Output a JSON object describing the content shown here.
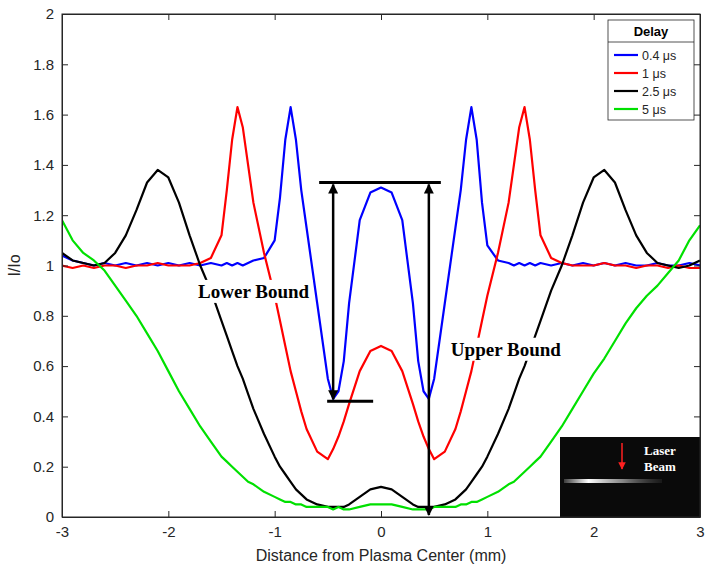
{
  "chart_data": {
    "type": "line",
    "x_label": "Distance from Plasma Center (mm)",
    "y_label": "I/Io",
    "legend_title": "Delay",
    "legend": "upper right",
    "xlim": [
      -3,
      3
    ],
    "ylim": [
      0,
      2
    ],
    "xticks": [
      -3,
      -2,
      -1,
      0,
      1,
      2,
      3
    ],
    "yticks": [
      0,
      0.2,
      0.4,
      0.6,
      0.8,
      1,
      1.2,
      1.4,
      1.6,
      1.8,
      2
    ],
    "grid": false,
    "x": [
      -3,
      -2.9,
      -2.8,
      -2.7,
      -2.6,
      -2.5,
      -2.4,
      -2.3,
      -2.2,
      -2.1,
      -2,
      -1.9,
      -1.8,
      -1.7,
      -1.6,
      -1.5,
      -1.45,
      -1.4,
      -1.35,
      -1.3,
      -1.25,
      -1.2,
      -1.1,
      -1,
      -0.95,
      -0.9,
      -0.85,
      -0.8,
      -0.75,
      -0.7,
      -0.6,
      -0.5,
      -0.45,
      -0.4,
      -0.35,
      -0.3,
      -0.2,
      -0.1,
      0,
      0.1,
      0.2,
      0.3,
      0.35,
      0.4,
      0.45,
      0.5,
      0.6,
      0.7,
      0.75,
      0.8,
      0.85,
      0.9,
      0.95,
      1,
      1.1,
      1.2,
      1.25,
      1.3,
      1.35,
      1.4,
      1.45,
      1.5,
      1.6,
      1.7,
      1.8,
      1.9,
      2,
      2.1,
      2.2,
      2.3,
      2.4,
      2.5,
      2.6,
      2.7,
      2.8,
      2.9,
      3
    ],
    "series": [
      {
        "name": "0.4 μs",
        "color": "#0000ff",
        "values": [
          1.04,
          1.02,
          1.01,
          1.0,
          1.01,
          1.0,
          1.01,
          1.0,
          1.01,
          1.0,
          1.01,
          1.0,
          1.01,
          1.0,
          1.01,
          1.0,
          1.01,
          1.0,
          1.01,
          1.0,
          1.01,
          1.02,
          1.03,
          1.1,
          1.27,
          1.5,
          1.63,
          1.5,
          1.3,
          1.15,
          0.85,
          0.55,
          0.47,
          0.5,
          0.62,
          0.85,
          1.18,
          1.29,
          1.31,
          1.29,
          1.18,
          0.85,
          0.62,
          0.5,
          0.47,
          0.55,
          0.85,
          1.15,
          1.3,
          1.5,
          1.63,
          1.5,
          1.25,
          1.08,
          1.02,
          1.01,
          1.0,
          1.01,
          1.0,
          1.01,
          1.0,
          1.01,
          1.0,
          1.01,
          1.0,
          1.01,
          1.0,
          1.01,
          1.0,
          1.01,
          1.0,
          1.0,
          1.01,
          1.0,
          1.0,
          1.01,
          1.0
        ]
      },
      {
        "name": "1 μs",
        "color": "#ff0000",
        "values": [
          1.0,
          0.99,
          1.0,
          0.99,
          1.0,
          1.0,
          0.99,
          1.0,
          1.0,
          1.01,
          1.0,
          1.0,
          1.0,
          1.01,
          1.03,
          1.12,
          1.3,
          1.5,
          1.63,
          1.55,
          1.4,
          1.25,
          1.05,
          0.88,
          0.78,
          0.68,
          0.58,
          0.5,
          0.42,
          0.35,
          0.26,
          0.23,
          0.27,
          0.32,
          0.38,
          0.45,
          0.58,
          0.66,
          0.68,
          0.66,
          0.58,
          0.45,
          0.38,
          0.32,
          0.27,
          0.23,
          0.26,
          0.35,
          0.42,
          0.5,
          0.58,
          0.68,
          0.78,
          0.88,
          1.05,
          1.25,
          1.4,
          1.55,
          1.63,
          1.5,
          1.3,
          1.12,
          1.03,
          1.01,
          1.0,
          1.0,
          1.0,
          1.01,
          1.0,
          1.0,
          0.99,
          1.0,
          1.0,
          0.99,
          1.0,
          0.99,
          0.99
        ]
      },
      {
        "name": "2.5 μs",
        "color": "#000000",
        "values": [
          1.05,
          1.02,
          1.01,
          1.0,
          1.01,
          1.05,
          1.12,
          1.22,
          1.33,
          1.38,
          1.35,
          1.25,
          1.12,
          1.0,
          0.9,
          0.78,
          0.72,
          0.66,
          0.6,
          0.55,
          0.49,
          0.43,
          0.33,
          0.24,
          0.2,
          0.17,
          0.14,
          0.11,
          0.09,
          0.07,
          0.05,
          0.04,
          0.04,
          0.04,
          0.04,
          0.05,
          0.08,
          0.11,
          0.12,
          0.11,
          0.08,
          0.05,
          0.04,
          0.04,
          0.04,
          0.04,
          0.05,
          0.07,
          0.09,
          0.11,
          0.14,
          0.17,
          0.2,
          0.24,
          0.33,
          0.43,
          0.49,
          0.55,
          0.6,
          0.66,
          0.72,
          0.78,
          0.9,
          1.0,
          1.12,
          1.25,
          1.35,
          1.38,
          1.33,
          1.22,
          1.12,
          1.05,
          1.01,
          1.0,
          0.99,
          1.0,
          1.02
        ]
      },
      {
        "name": "5 μs",
        "color": "#00e000",
        "values": [
          1.18,
          1.1,
          1.05,
          1.02,
          0.98,
          0.92,
          0.86,
          0.8,
          0.73,
          0.66,
          0.58,
          0.5,
          0.43,
          0.36,
          0.3,
          0.24,
          0.22,
          0.2,
          0.18,
          0.16,
          0.14,
          0.13,
          0.1,
          0.08,
          0.07,
          0.06,
          0.06,
          0.05,
          0.05,
          0.04,
          0.04,
          0.04,
          0.03,
          0.04,
          0.03,
          0.03,
          0.04,
          0.05,
          0.05,
          0.05,
          0.04,
          0.03,
          0.03,
          0.03,
          0.03,
          0.04,
          0.04,
          0.04,
          0.05,
          0.05,
          0.06,
          0.06,
          0.07,
          0.08,
          0.1,
          0.13,
          0.14,
          0.16,
          0.18,
          0.2,
          0.22,
          0.24,
          0.3,
          0.36,
          0.43,
          0.5,
          0.57,
          0.63,
          0.7,
          0.77,
          0.83,
          0.88,
          0.92,
          0.97,
          1.02,
          1.1,
          1.16
        ]
      }
    ],
    "annotations": [
      {
        "text": "Lower Bound",
        "x": -0.45,
        "y_top": 1.33,
        "y_bottom": 0.46
      },
      {
        "text": "Upper Bound",
        "x": 0.45,
        "y_top": 1.33,
        "y_bottom": 0
      }
    ],
    "inset": {
      "text": "Laser Beam"
    }
  }
}
